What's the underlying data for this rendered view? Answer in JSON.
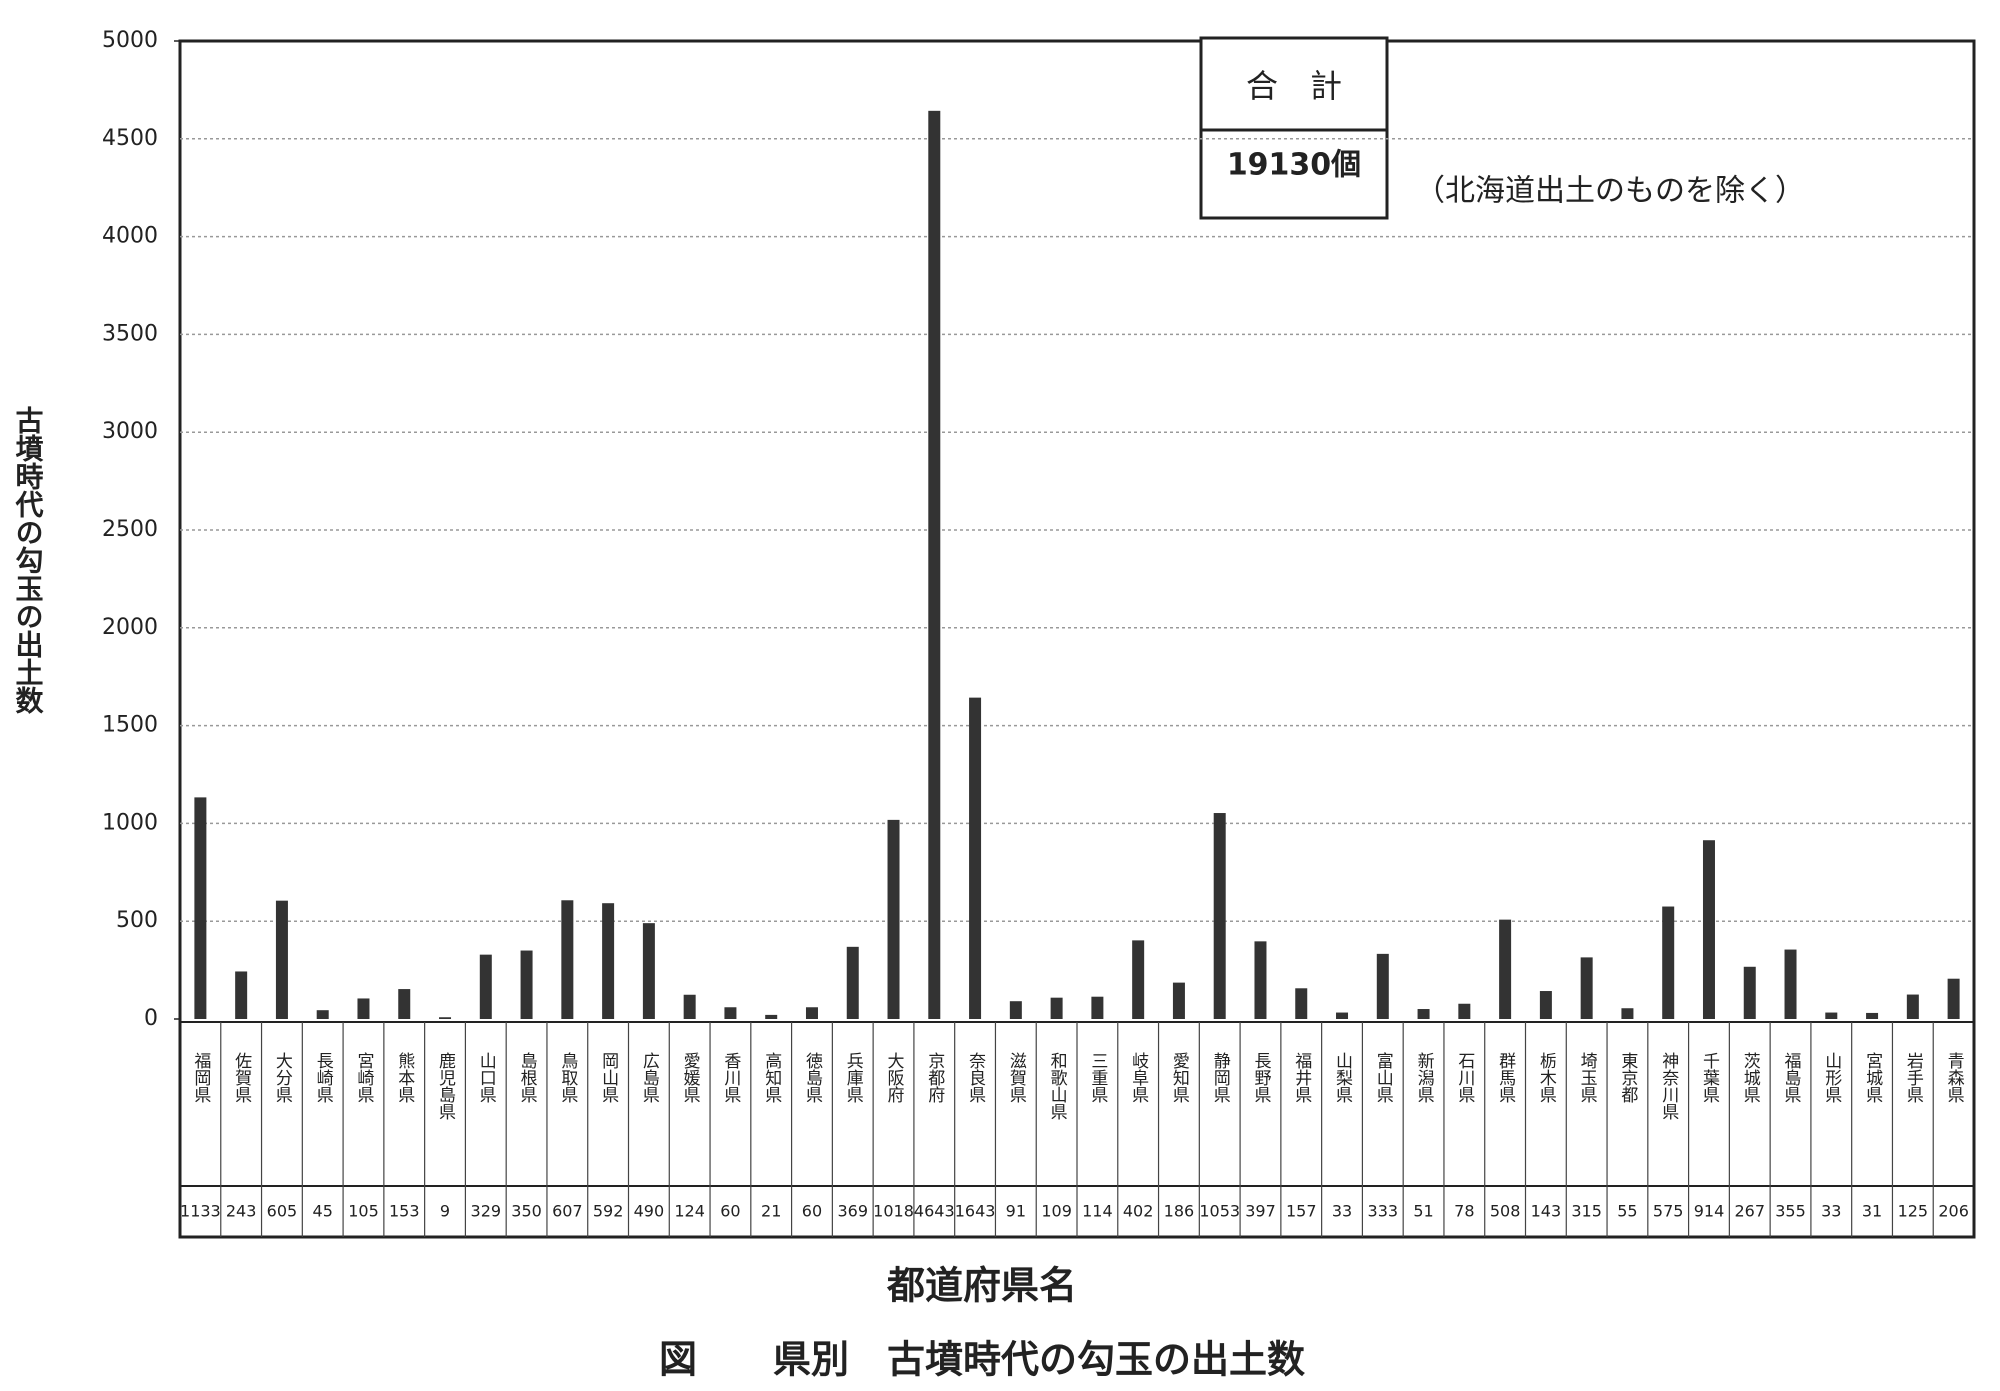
{
  "chart_data": {
    "type": "bar",
    "title": "図　　県別　古墳時代の勾玉の出土数",
    "xlabel": "都道府県名",
    "ylabel": "古墳時代の勾玉の出土数",
    "total_label": "合　計",
    "total_value": "19130個",
    "note": "（北海道出土のものを除く）",
    "categories": [
      "福岡県",
      "佐賀県",
      "大分県",
      "長崎県",
      "宮崎県",
      "熊本県",
      "鹿児島県",
      "山口県",
      "島根県",
      "鳥取県",
      "岡山県",
      "広島県",
      "愛媛県",
      "香川県",
      "高知県",
      "徳島県",
      "兵庫県",
      "大阪府",
      "京都府",
      "奈良県",
      "滋賀県",
      "和歌山県",
      "三重県",
      "岐阜県",
      "愛知県",
      "静岡県",
      "長野県",
      "福井県",
      "山梨県",
      "富山県",
      "新潟県",
      "石川県",
      "群馬県",
      "栃木県",
      "埼玉県",
      "東京都",
      "神奈川県",
      "千葉県",
      "茨城県",
      "福島県",
      "山形県",
      "宮城県",
      "岩手県",
      "青森県"
    ],
    "values": [
      1133,
      243,
      605,
      45,
      105,
      153,
      9,
      329,
      350,
      607,
      592,
      490,
      124,
      60,
      21,
      60,
      369,
      1018,
      4643,
      1643,
      91,
      109,
      114,
      402,
      186,
      1053,
      397,
      157,
      33,
      333,
      51,
      78,
      508,
      143,
      315,
      55,
      575,
      914,
      267,
      355,
      33,
      31,
      125,
      206
    ],
    "color": "#333333",
    "ylim": [
      0,
      5000
    ],
    "yticks": [
      0,
      500,
      1000,
      1500,
      2000,
      2500,
      3000,
      3500,
      4000,
      4500,
      5000
    ],
    "grid": true
  }
}
